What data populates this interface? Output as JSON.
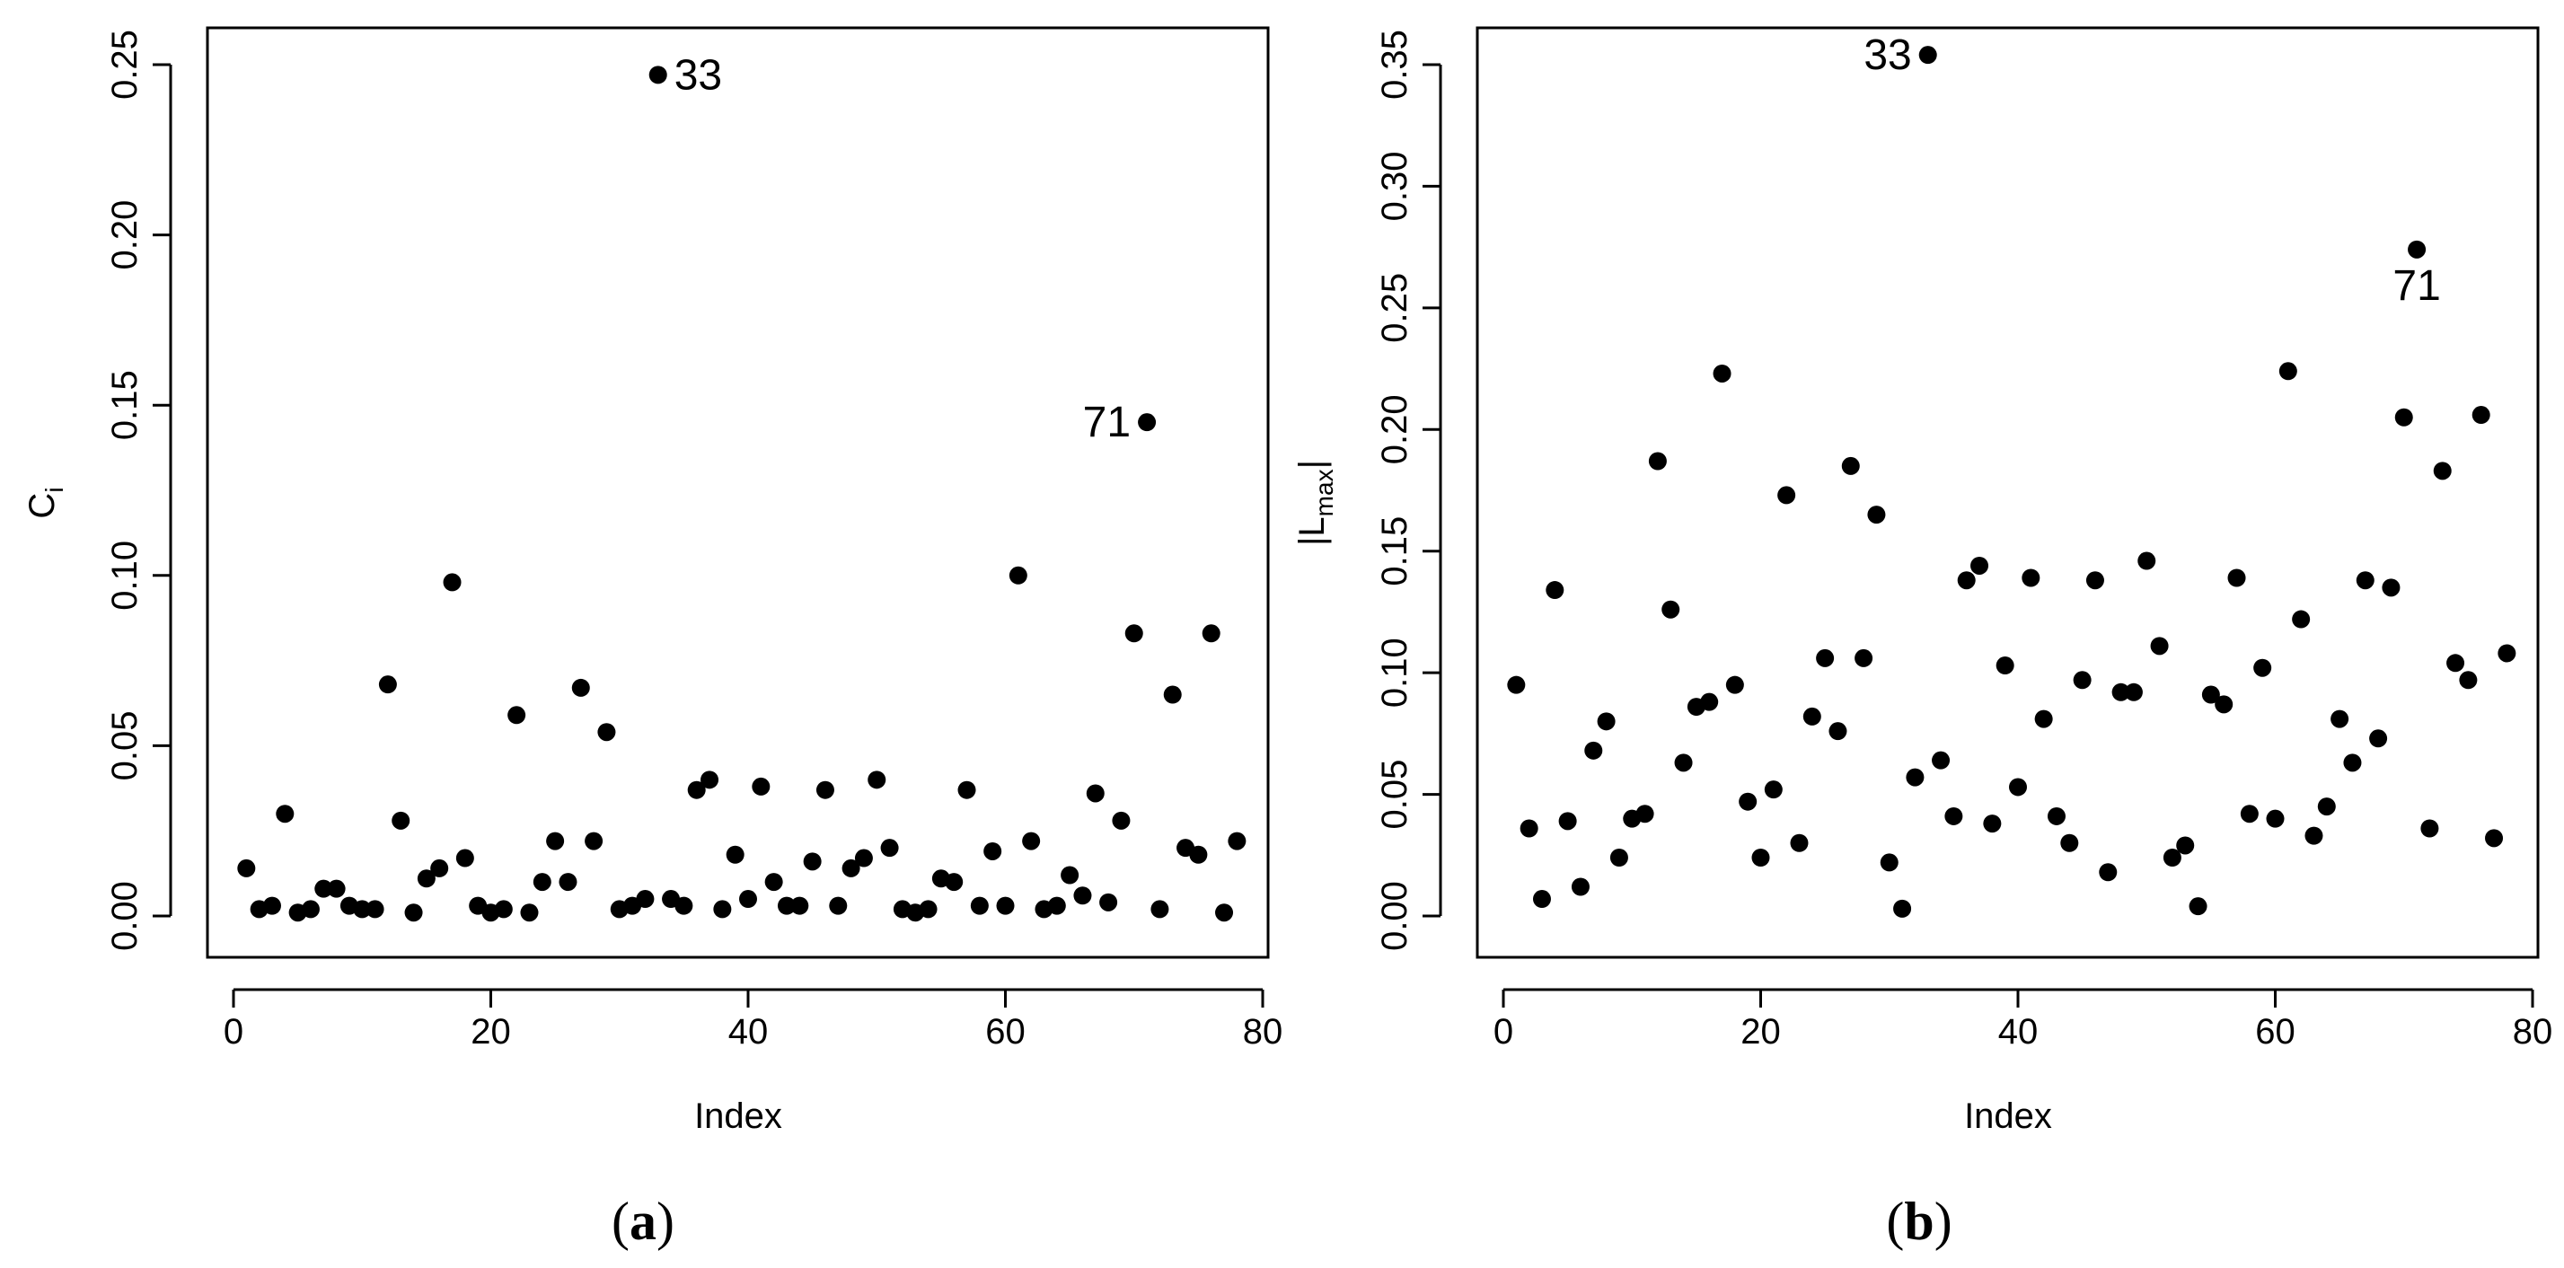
{
  "chart_data": [
    {
      "type": "scatter",
      "panel_label_open": "(",
      "panel_label": "a",
      "panel_label_close": ")",
      "xlabel": "Index",
      "ylabel": "C",
      "ylabel_sub": "i",
      "xlim": [
        0,
        80
      ],
      "ylim": [
        0,
        0.25
      ],
      "xticks": [
        0,
        20,
        40,
        60,
        80
      ],
      "yticks": [
        "0.00",
        "0.05",
        "0.10",
        "0.15",
        "0.20",
        "0.25"
      ],
      "x": [
        1,
        2,
        3,
        4,
        5,
        6,
        7,
        8,
        9,
        10,
        11,
        12,
        13,
        14,
        15,
        16,
        17,
        18,
        19,
        20,
        21,
        22,
        23,
        24,
        25,
        26,
        27,
        28,
        29,
        30,
        31,
        32,
        33,
        34,
        35,
        36,
        37,
        38,
        39,
        40,
        41,
        42,
        43,
        44,
        45,
        46,
        47,
        48,
        49,
        50,
        51,
        52,
        53,
        54,
        55,
        56,
        57,
        58,
        59,
        60,
        61,
        62,
        63,
        64,
        65,
        66,
        67,
        68,
        69,
        70,
        71,
        72,
        73,
        74,
        75,
        76,
        77,
        78
      ],
      "y": [
        0.014,
        0.002,
        0.003,
        0.03,
        0.001,
        0.002,
        0.008,
        0.008,
        0.003,
        0.002,
        0.002,
        0.068,
        0.028,
        0.001,
        0.011,
        0.014,
        0.098,
        0.017,
        0.003,
        0.001,
        0.002,
        0.059,
        0.001,
        0.01,
        0.022,
        0.01,
        0.067,
        0.022,
        0.054,
        0.002,
        0.003,
        0.005,
        0.247,
        0.005,
        0.003,
        0.037,
        0.04,
        0.002,
        0.018,
        0.005,
        0.038,
        0.01,
        0.003,
        0.003,
        0.016,
        0.037,
        0.003,
        0.014,
        0.017,
        0.04,
        0.02,
        0.002,
        0.001,
        0.002,
        0.011,
        0.01,
        0.037,
        0.003,
        0.019,
        0.003,
        0.1,
        0.022,
        0.002,
        0.003,
        0.012,
        0.006,
        0.036,
        0.004,
        0.028,
        0.083,
        0.145,
        0.002,
        0.065,
        0.02,
        0.018,
        0.083,
        0.001,
        0.022
      ],
      "annotations": [
        {
          "text": "33",
          "x": 33,
          "y": 0.247,
          "side": "right"
        },
        {
          "text": "71",
          "x": 71,
          "y": 0.145,
          "side": "left"
        }
      ]
    },
    {
      "type": "scatter",
      "panel_label_open": "(",
      "panel_label": "b",
      "panel_label_close": ")",
      "xlabel": "Index",
      "ylabel": "|L",
      "ylabel_sub": "max",
      "ylabel_tail": "|",
      "xlim": [
        0,
        80
      ],
      "ylim": [
        0,
        0.35
      ],
      "xticks": [
        0,
        20,
        40,
        60,
        80
      ],
      "yticks": [
        "0.00",
        "0.05",
        "0.10",
        "0.15",
        "0.20",
        "0.25",
        "0.30",
        "0.35"
      ],
      "x": [
        1,
        2,
        3,
        4,
        5,
        6,
        7,
        8,
        9,
        10,
        11,
        12,
        13,
        14,
        15,
        16,
        17,
        18,
        19,
        20,
        21,
        22,
        23,
        24,
        25,
        26,
        27,
        28,
        29,
        30,
        31,
        32,
        33,
        34,
        35,
        36,
        37,
        38,
        39,
        40,
        41,
        42,
        43,
        44,
        45,
        46,
        47,
        48,
        49,
        50,
        51,
        52,
        53,
        54,
        55,
        56,
        57,
        58,
        59,
        60,
        61,
        62,
        63,
        64,
        65,
        66,
        67,
        68,
        69,
        70,
        71,
        72,
        73,
        74,
        75,
        76,
        77,
        78
      ],
      "y": [
        0.095,
        0.036,
        0.007,
        0.134,
        0.039,
        0.012,
        0.068,
        0.08,
        0.024,
        0.04,
        0.042,
        0.187,
        0.126,
        0.063,
        0.086,
        0.088,
        0.223,
        0.095,
        0.047,
        0.024,
        0.052,
        0.173,
        0.03,
        0.082,
        0.106,
        0.076,
        0.185,
        0.106,
        0.165,
        0.022,
        0.003,
        0.057,
        0.354,
        0.064,
        0.041,
        0.138,
        0.144,
        0.038,
        0.103,
        0.053,
        0.139,
        0.081,
        0.041,
        0.03,
        0.097,
        0.138,
        0.018,
        0.092,
        0.092,
        0.146,
        0.111,
        0.024,
        0.029,
        0.004,
        0.091,
        0.087,
        0.139,
        0.042,
        0.102,
        0.04,
        0.224,
        0.122,
        0.033,
        0.045,
        0.081,
        0.063,
        0.138,
        0.073,
        0.135,
        0.205,
        0.274,
        0.036,
        0.183,
        0.104,
        0.097,
        0.206,
        0.032,
        0.108
      ],
      "annotations": [
        {
          "text": "33",
          "x": 33,
          "y": 0.354,
          "side": "left"
        },
        {
          "text": "71",
          "x": 71,
          "y": 0.274,
          "side": "below"
        }
      ]
    }
  ]
}
